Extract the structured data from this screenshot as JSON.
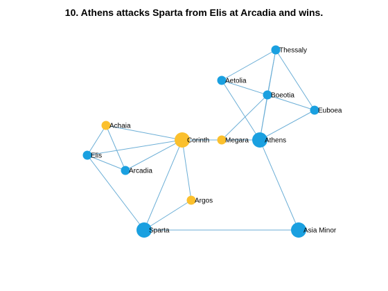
{
  "title": "10. Athens attacks Sparta from Elis at Arcadia and wins.",
  "colors": {
    "blue": "#1aa0e0",
    "yellow": "#fbc02d",
    "edge": "#6baed6"
  },
  "nodes": [
    {
      "id": "thessaly",
      "label": "Thessaly",
      "color": "blue",
      "size": "small"
    },
    {
      "id": "aetolia",
      "label": "Aetolia",
      "color": "blue",
      "size": "small"
    },
    {
      "id": "boeotia",
      "label": "Boeotia",
      "color": "blue",
      "size": "small"
    },
    {
      "id": "euboea",
      "label": "Euboea",
      "color": "blue",
      "size": "small"
    },
    {
      "id": "achaia",
      "label": "Achaia",
      "color": "yellow",
      "size": "small"
    },
    {
      "id": "corinth",
      "label": "Corinth",
      "color": "yellow",
      "size": "large"
    },
    {
      "id": "megara",
      "label": "Megara",
      "color": "yellow",
      "size": "small"
    },
    {
      "id": "athens",
      "label": "Athens",
      "color": "blue",
      "size": "large"
    },
    {
      "id": "elis",
      "label": "Elis",
      "color": "blue",
      "size": "small"
    },
    {
      "id": "arcadia",
      "label": "Arcadia",
      "color": "blue",
      "size": "small"
    },
    {
      "id": "argos",
      "label": "Argos",
      "color": "yellow",
      "size": "small"
    },
    {
      "id": "sparta",
      "label": "Sparta",
      "color": "blue",
      "size": "large"
    },
    {
      "id": "asia_minor",
      "label": "Asia Minor",
      "color": "blue",
      "size": "large"
    }
  ],
  "edges": [
    [
      "thessaly",
      "aetolia"
    ],
    [
      "thessaly",
      "boeotia"
    ],
    [
      "thessaly",
      "euboea"
    ],
    [
      "thessaly",
      "athens"
    ],
    [
      "aetolia",
      "boeotia"
    ],
    [
      "aetolia",
      "athens"
    ],
    [
      "boeotia",
      "euboea"
    ],
    [
      "boeotia",
      "athens"
    ],
    [
      "boeotia",
      "megara"
    ],
    [
      "euboea",
      "athens"
    ],
    [
      "athens",
      "megara"
    ],
    [
      "athens",
      "asia_minor"
    ],
    [
      "megara",
      "corinth"
    ],
    [
      "corinth",
      "achaia"
    ],
    [
      "corinth",
      "elis"
    ],
    [
      "corinth",
      "arcadia"
    ],
    [
      "corinth",
      "argos"
    ],
    [
      "corinth",
      "sparta"
    ],
    [
      "achaia",
      "elis"
    ],
    [
      "achaia",
      "arcadia"
    ],
    [
      "elis",
      "arcadia"
    ],
    [
      "elis",
      "sparta"
    ],
    [
      "argos",
      "sparta"
    ],
    [
      "sparta",
      "asia_minor"
    ]
  ]
}
